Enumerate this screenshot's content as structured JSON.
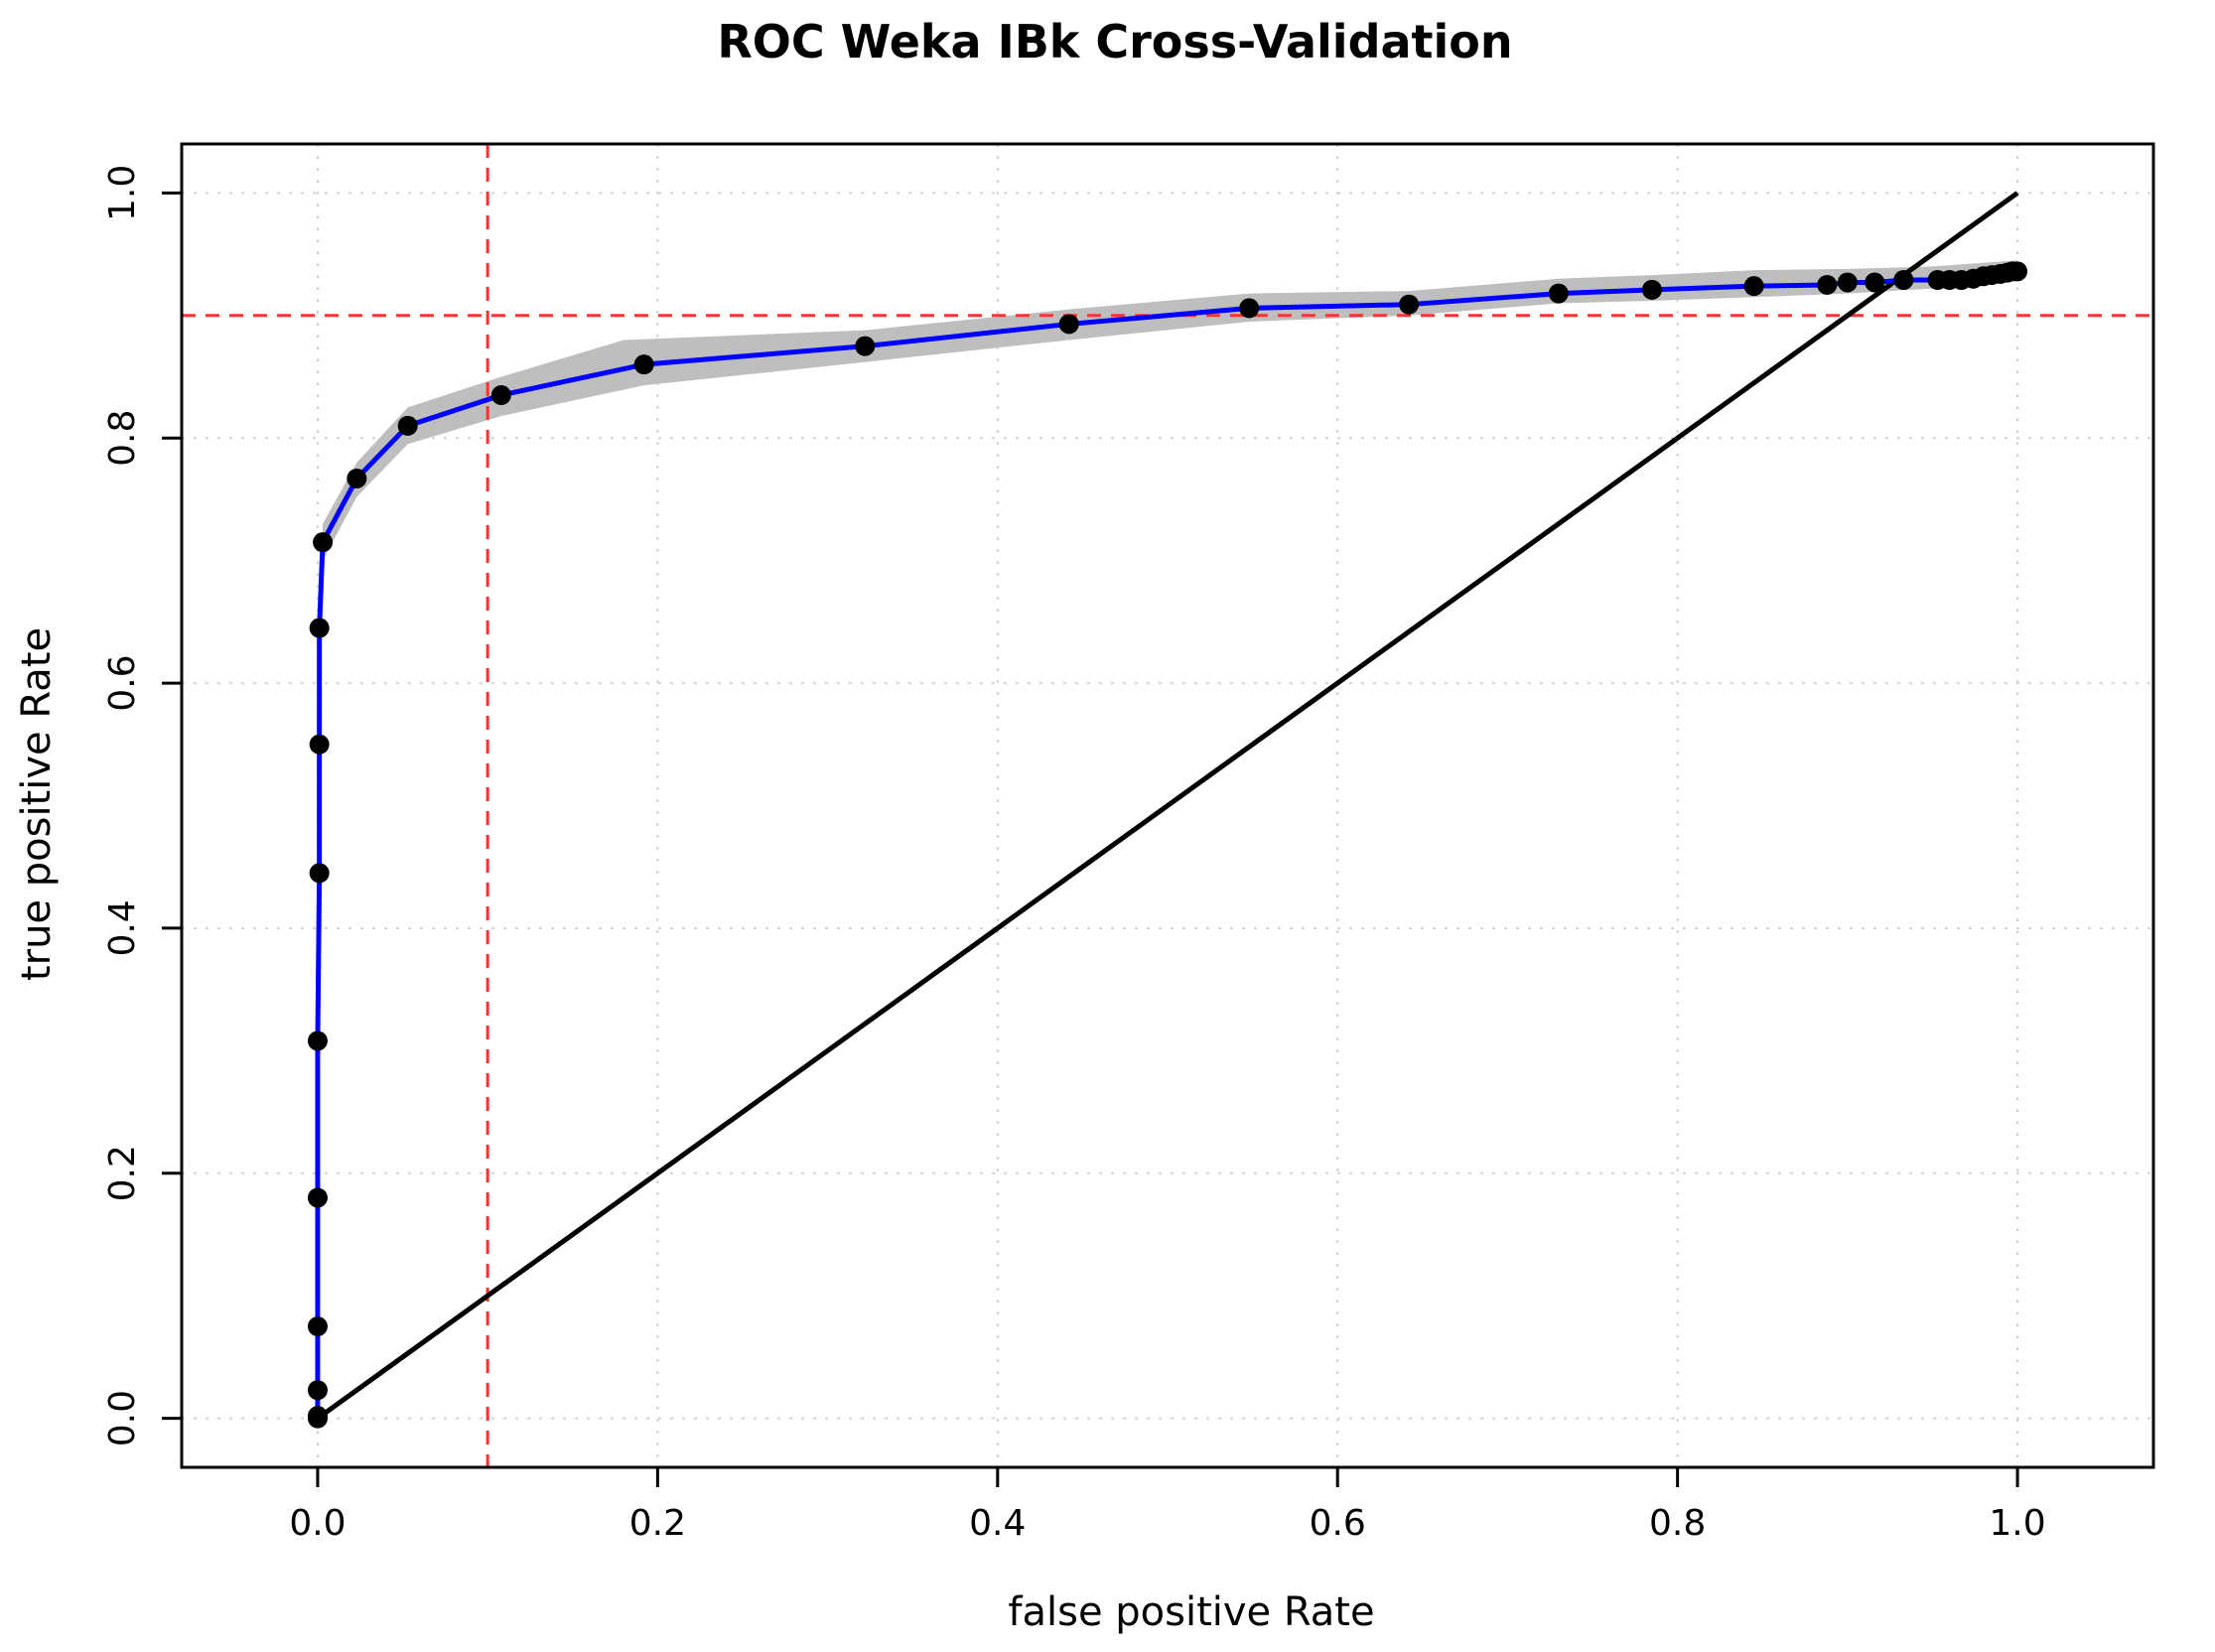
{
  "chart_data": {
    "type": "line",
    "title": "ROC Weka IBk Cross-Validation",
    "xlabel": "false positive Rate",
    "ylabel": "true positive Rate",
    "xlim": [
      -0.08,
      1.08
    ],
    "ylim": [
      -0.04,
      1.04
    ],
    "x_ticks": [
      0.0,
      0.2,
      0.4,
      0.6,
      0.8,
      1.0
    ],
    "y_ticks": [
      0.0,
      0.2,
      0.4,
      0.6,
      0.8,
      1.0
    ],
    "x_tick_labels": [
      "0.0",
      "0.2",
      "0.4",
      "0.6",
      "0.8",
      "1.0"
    ],
    "y_tick_labels": [
      "0.0",
      "0.2",
      "0.4",
      "0.6",
      "0.8",
      "1.0"
    ],
    "grid": true,
    "reference_lines": {
      "vertical_x": 0.1,
      "horizontal_y": 0.9,
      "color": "#ff3030",
      "style": "dashed"
    },
    "diagonal": {
      "from": [
        0,
        0
      ],
      "to": [
        1,
        1
      ],
      "color": "#000000"
    },
    "band": {
      "color": "#bebebe",
      "upper": [
        [
          0.0,
          0.0
        ],
        [
          0.003,
          0.73
        ],
        [
          0.023,
          0.78
        ],
        [
          0.053,
          0.825
        ],
        [
          0.108,
          0.85
        ],
        [
          0.18,
          0.88
        ],
        [
          0.322,
          0.888
        ],
        [
          0.442,
          0.905
        ],
        [
          0.548,
          0.918
        ],
        [
          0.642,
          0.92
        ],
        [
          0.73,
          0.93
        ],
        [
          0.785,
          0.933
        ],
        [
          0.845,
          0.937
        ],
        [
          0.9,
          0.938
        ],
        [
          0.95,
          0.94
        ],
        [
          1.0,
          0.945
        ]
      ],
      "lower": [
        [
          0.0,
          0.0
        ],
        [
          0.003,
          0.7
        ],
        [
          0.023,
          0.752
        ],
        [
          0.053,
          0.795
        ],
        [
          0.108,
          0.818
        ],
        [
          0.192,
          0.843
        ],
        [
          0.322,
          0.862
        ],
        [
          0.442,
          0.88
        ],
        [
          0.548,
          0.895
        ],
        [
          0.642,
          0.9
        ],
        [
          0.73,
          0.91
        ],
        [
          0.785,
          0.912
        ],
        [
          0.845,
          0.915
        ],
        [
          0.9,
          0.918
        ],
        [
          0.95,
          0.922
        ],
        [
          1.0,
          0.93
        ]
      ]
    },
    "series": [
      {
        "name": "ROC",
        "color": "#0000ff",
        "points": [
          [
            0.0,
            0.0
          ],
          [
            0.0,
            0.002
          ],
          [
            0.0,
            0.023
          ],
          [
            0.0,
            0.075
          ],
          [
            0.0,
            0.18
          ],
          [
            0.0,
            0.308
          ],
          [
            0.001,
            0.445
          ],
          [
            0.001,
            0.55
          ],
          [
            0.001,
            0.645
          ],
          [
            0.003,
            0.715
          ],
          [
            0.023,
            0.767
          ],
          [
            0.053,
            0.81
          ],
          [
            0.108,
            0.835
          ],
          [
            0.192,
            0.86
          ],
          [
            0.322,
            0.875
          ],
          [
            0.442,
            0.893
          ],
          [
            0.548,
            0.906
          ],
          [
            0.642,
            0.909
          ],
          [
            0.73,
            0.918
          ],
          [
            0.785,
            0.921
          ],
          [
            0.845,
            0.924
          ],
          [
            0.888,
            0.925
          ],
          [
            0.9,
            0.927
          ],
          [
            0.916,
            0.927
          ],
          [
            0.933,
            0.929
          ],
          [
            0.953,
            0.929
          ],
          [
            0.96,
            0.929
          ],
          [
            0.967,
            0.929
          ],
          [
            0.974,
            0.93
          ],
          [
            0.98,
            0.932
          ],
          [
            0.985,
            0.933
          ],
          [
            0.99,
            0.934
          ],
          [
            0.994,
            0.935
          ],
          [
            0.997,
            0.936
          ],
          [
            1.0,
            0.936
          ]
        ]
      }
    ]
  }
}
